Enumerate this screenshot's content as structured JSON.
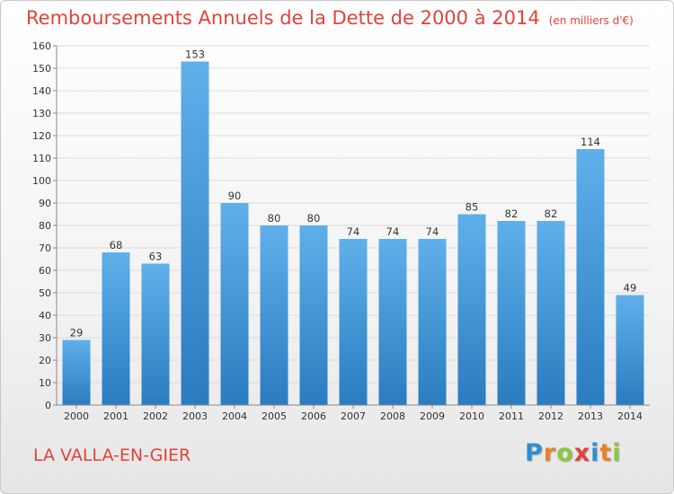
{
  "title": "Remboursements Annuels de la Dette de 2000 à 2014",
  "title_unit": "(en milliers d'€)",
  "place": "LA VALLA-EN-GIER",
  "logo": {
    "text": "Proxiti",
    "letters": [
      {
        "ch": "P",
        "color": "#2f8fd0"
      },
      {
        "ch": "r",
        "color": "#e8822a"
      },
      {
        "ch": "o",
        "color": "#8cc63f"
      },
      {
        "ch": "x",
        "color": "#e0433a"
      },
      {
        "ch": "i",
        "color": "#2f8fd0"
      },
      {
        "ch": "t",
        "color": "#e8822a"
      },
      {
        "ch": "i",
        "color": "#8cc63f"
      }
    ]
  },
  "colors": {
    "accent": "#e0433a",
    "bar_top": "#5fb0ea",
    "bar_bottom": "#2a7cc0",
    "grid": "#dcdcdc",
    "axis": "#888888"
  },
  "chart_data": {
    "type": "bar",
    "categories": [
      "2000",
      "2001",
      "2002",
      "2003",
      "2004",
      "2005",
      "2006",
      "2007",
      "2008",
      "2009",
      "2010",
      "2011",
      "2012",
      "2013",
      "2014"
    ],
    "values": [
      29,
      68,
      63,
      153,
      90,
      80,
      80,
      74,
      74,
      74,
      85,
      82,
      82,
      114,
      49
    ],
    "ylim": [
      0,
      160
    ],
    "yticks": [
      0,
      10,
      20,
      30,
      40,
      50,
      60,
      70,
      80,
      90,
      100,
      110,
      120,
      130,
      140,
      150,
      160
    ],
    "grid": true,
    "data_labels": true
  }
}
